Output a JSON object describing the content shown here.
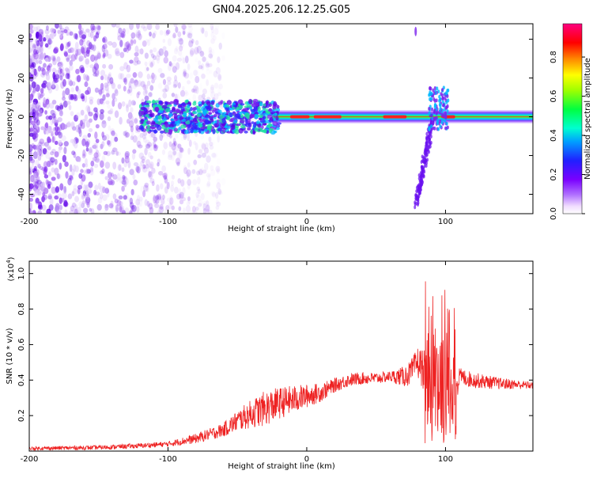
{
  "title": "GN04.2025.206.12.25.G05",
  "colors": {
    "snr_line": "#ee2222",
    "spectrogram_scatter": "#7a22ee"
  },
  "chart_data": [
    {
      "type": "heatmap",
      "name": "spectrogram",
      "xlabel": "Height of straight line (km)",
      "ylabel": "Frequency (Hz)",
      "xlim": [
        -200,
        163
      ],
      "ylim": [
        -50,
        48
      ],
      "x_ticks": [
        -200,
        -100,
        0,
        100
      ],
      "y_ticks": [
        -40,
        -20,
        0,
        20,
        40
      ],
      "colorbar": {
        "label": "Normalized spectral amplitude",
        "range": [
          0,
          0.97
        ],
        "ticks": [
          0.0,
          0.2,
          0.4,
          0.6,
          0.8
        ],
        "tick_labels": [
          "0.0",
          "0.2",
          "0.4",
          "0.6",
          "0.8"
        ],
        "colormap": "rainbow (white-violet-blue-cyan-green-yellow-red-magenta)"
      },
      "features": [
        {
          "label_hidden": "diffuse noise",
          "x_range": [
            -200,
            -70
          ],
          "freq_range": [
            -50,
            48
          ],
          "amplitude": 0.1
        },
        {
          "label_hidden": "central band",
          "x_range": [
            -120,
            163
          ],
          "freq_center": 0,
          "amplitude_max": 0.9
        },
        {
          "label_hidden": "dispersed streak",
          "x_range": [
            77,
            100
          ],
          "freq_range": [
            -45,
            45
          ],
          "amplitude": 0.15
        }
      ]
    },
    {
      "type": "line",
      "name": "snr",
      "xlabel": "Height of straight line (km)",
      "ylabel": "SNR (10 * v/v)",
      "y_multiplier": "(x10^4)",
      "xlim": [
        -200,
        163
      ],
      "ylim": [
        0,
        1.07
      ],
      "x_ticks": [
        -200,
        -100,
        0,
        100
      ],
      "y_ticks": [
        0.2,
        0.4,
        0.6,
        0.8,
        1.0
      ],
      "series": [
        {
          "x": [
            -200,
            -150,
            -120,
            -100,
            -80,
            -60,
            -50,
            -40,
            -30,
            -20,
            -10,
            0,
            10,
            20,
            30,
            40,
            50,
            60,
            70,
            75,
            80,
            85,
            90,
            95,
            100,
            105,
            110,
            120,
            140,
            163
          ],
          "y": [
            0.015,
            0.02,
            0.03,
            0.04,
            0.07,
            0.12,
            0.17,
            0.21,
            0.24,
            0.27,
            0.29,
            0.31,
            0.33,
            0.37,
            0.4,
            0.41,
            0.41,
            0.42,
            0.42,
            0.44,
            0.5,
            0.45,
            0.6,
            0.7,
            0.5,
            0.35,
            0.42,
            0.4,
            0.38,
            0.37
          ],
          "noise_envelope": [
            [
              -200,
              0.01
            ],
            [
              -100,
              0.015
            ],
            [
              -60,
              0.04
            ],
            [
              -30,
              0.1
            ],
            [
              -10,
              0.08
            ],
            [
              20,
              0.04
            ],
            [
              60,
              0.03
            ],
            [
              78,
              0.08
            ],
            [
              85,
              0.12
            ],
            [
              90,
              0.6
            ],
            [
              95,
              0.6
            ],
            [
              100,
              0.45
            ],
            [
              105,
              0.25
            ],
            [
              110,
              0.05
            ],
            [
              163,
              0.02
            ]
          ]
        }
      ]
    }
  ]
}
